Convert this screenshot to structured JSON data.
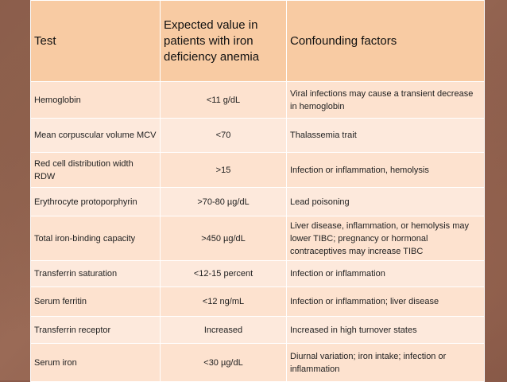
{
  "table": {
    "headers": {
      "test": "Test",
      "expected": "Expected value in patients with iron deficiency anemia",
      "confounding": "Confounding factors"
    },
    "rows": [
      {
        "test": "Hemoglobin",
        "value": "<11 g/dL",
        "confounding": "Viral infections may cause a transient decrease in hemoglobin"
      },
      {
        "test": "Mean corpuscular volume MCV",
        "value": "<70",
        "confounding": "Thalassemia trait"
      },
      {
        "test": "Red cell distribution width RDW",
        "value": ">15",
        "confounding": "Infection or inflammation, hemolysis"
      },
      {
        "test": "Erythrocyte protoporphyrin",
        "value": ">70-80 µg/dL",
        "confounding": "Lead poisoning"
      },
      {
        "test": "Total iron-binding capacity",
        "value": ">450 µg/dL",
        "confounding": "Liver disease, inflammation, or hemolysis may lower TIBC; pregnancy or hormonal contraceptives may increase TIBC"
      },
      {
        "test": "Transferrin saturation",
        "value": "<12-15 percent",
        "confounding": "Infection or inflammation"
      },
      {
        "test": "Serum ferritin",
        "value": "<12 ng/mL",
        "confounding": "Infection or inflammation; liver disease"
      },
      {
        "test": "Transferrin receptor",
        "value": "Increased",
        "confounding": "Increased in high turnover states"
      },
      {
        "test": "Serum iron",
        "value": "<30 µg/dL",
        "confounding": "Diurnal variation; iron intake; infection or inflammation"
      }
    ]
  },
  "colors": {
    "header_bg": "#f8cba3",
    "row_bg": "#fde2cf",
    "background": "#8a5a4a"
  }
}
